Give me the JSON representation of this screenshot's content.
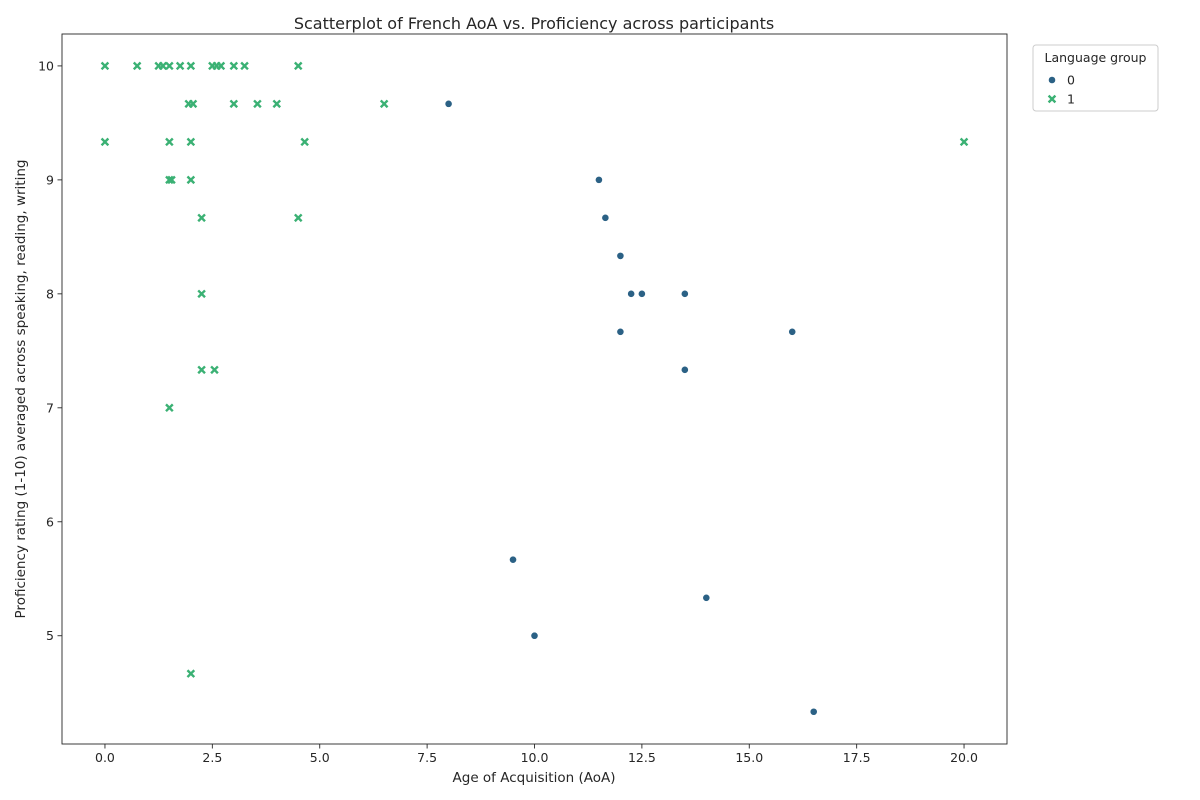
{
  "chart_data": {
    "type": "scatter",
    "title": "Scatterplot of French AoA vs. Proficiency across participants",
    "xlabel": "Age of Acquisition (AoA)",
    "ylabel": "Proficiency rating (1-10) averaged across speaking, reading, writing",
    "xlim": [
      -1.0,
      21.0
    ],
    "ylim": [
      4.05,
      10.28
    ],
    "xticks": [
      0.0,
      2.5,
      5.0,
      7.5,
      10.0,
      12.5,
      15.0,
      17.5,
      20.0
    ],
    "xtick_labels": [
      "0.0",
      "2.5",
      "5.0",
      "7.5",
      "10.0",
      "12.5",
      "15.0",
      "17.5",
      "20.0"
    ],
    "yticks": [
      5,
      6,
      7,
      8,
      9,
      10
    ],
    "ytick_labels": [
      "5",
      "6",
      "7",
      "8",
      "9",
      "10"
    ],
    "grid": false,
    "legend": {
      "title": "Language group",
      "placement": "outside-top-right",
      "entries": [
        "0",
        "1"
      ]
    },
    "series": [
      {
        "name": "0",
        "marker": "circle",
        "color": "#2b6185",
        "points": [
          [
            8.0,
            9.667
          ],
          [
            11.5,
            9.0
          ],
          [
            11.65,
            8.667
          ],
          [
            12.0,
            8.333
          ],
          [
            12.25,
            8.0
          ],
          [
            12.5,
            8.0
          ],
          [
            13.5,
            8.0
          ],
          [
            12.0,
            7.667
          ],
          [
            16.0,
            7.667
          ],
          [
            13.5,
            7.333
          ],
          [
            9.5,
            5.667
          ],
          [
            14.0,
            5.333
          ],
          [
            10.0,
            5.0
          ],
          [
            16.5,
            4.333
          ]
        ]
      },
      {
        "name": "1",
        "marker": "x",
        "color": "#3bb174",
        "points": [
          [
            0.0,
            10.0
          ],
          [
            0.75,
            10.0
          ],
          [
            1.25,
            10.0
          ],
          [
            1.35,
            10.0
          ],
          [
            1.5,
            10.0
          ],
          [
            1.75,
            10.0
          ],
          [
            2.0,
            10.0
          ],
          [
            2.5,
            10.0
          ],
          [
            2.6,
            10.0
          ],
          [
            2.7,
            10.0
          ],
          [
            3.0,
            10.0
          ],
          [
            3.25,
            10.0
          ],
          [
            4.5,
            10.0
          ],
          [
            1.95,
            9.667
          ],
          [
            2.05,
            9.667
          ],
          [
            3.0,
            9.667
          ],
          [
            3.55,
            9.667
          ],
          [
            4.0,
            9.667
          ],
          [
            6.5,
            9.667
          ],
          [
            0.0,
            9.333
          ],
          [
            1.5,
            9.333
          ],
          [
            2.0,
            9.333
          ],
          [
            4.65,
            9.333
          ],
          [
            20.0,
            9.333
          ],
          [
            1.5,
            9.0
          ],
          [
            1.55,
            9.0
          ],
          [
            2.0,
            9.0
          ],
          [
            2.25,
            8.667
          ],
          [
            4.5,
            8.667
          ],
          [
            2.25,
            8.0
          ],
          [
            2.25,
            7.333
          ],
          [
            2.55,
            7.333
          ],
          [
            1.5,
            7.0
          ],
          [
            2.0,
            4.667
          ]
        ]
      }
    ]
  }
}
